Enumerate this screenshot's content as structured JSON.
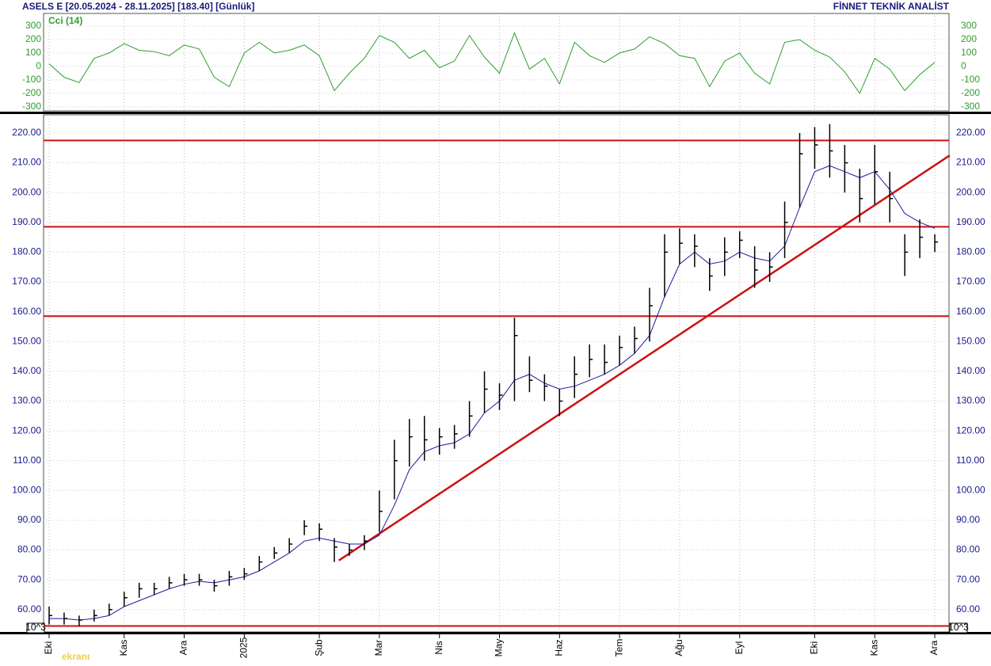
{
  "chart_data": [
    {
      "type": "line",
      "title": "ASELS E  [20.05.2024 - 28.11.2025]  [183.40]  [Günlük]",
      "subtitle": "FİNNET TEKNİK ANALİST",
      "series": [
        {
          "name": "Cci (14)",
          "color": "#2e9e2e",
          "values": [
            20,
            -80,
            -120,
            60,
            100,
            170,
            120,
            110,
            80,
            160,
            130,
            -80,
            -150,
            100,
            180,
            100,
            120,
            160,
            80,
            -180,
            -50,
            60,
            230,
            180,
            60,
            120,
            -10,
            40,
            230,
            70,
            -50,
            250,
            -20,
            60,
            -130,
            180,
            80,
            30,
            100,
            130,
            220,
            170,
            80,
            60,
            -150,
            40,
            100,
            -50,
            -130,
            180,
            200,
            120,
            70,
            -40,
            -200,
            60,
            -20,
            -180,
            -60,
            30
          ]
        }
      ],
      "ylim": [
        -330,
        394
      ],
      "yticks": [
        -300,
        -200,
        -100,
        0,
        100,
        200,
        300
      ]
    },
    {
      "type": "ohlc",
      "categories": [
        "Eki",
        null,
        null,
        null,
        null,
        "Kas",
        null,
        null,
        null,
        "Ara",
        null,
        null,
        null,
        "2025",
        null,
        null,
        null,
        null,
        "Şub",
        null,
        null,
        null,
        "Mar",
        null,
        null,
        null,
        "Nis",
        null,
        null,
        null,
        "May",
        null,
        null,
        null,
        "Haz",
        null,
        null,
        null,
        "Tem",
        null,
        null,
        null,
        "Ağu",
        null,
        null,
        null,
        "Eyl",
        null,
        null,
        null,
        null,
        "Eki",
        null,
        null,
        null,
        "Kas",
        null,
        null,
        null,
        "Ara"
      ],
      "high": [
        61,
        59,
        58,
        60,
        62,
        66,
        69,
        69,
        71,
        72,
        72,
        70,
        73,
        74,
        78,
        81,
        84,
        90,
        89,
        84,
        82,
        85,
        100,
        117,
        124,
        125,
        121,
        122,
        130,
        140,
        136,
        158,
        145,
        139,
        134,
        145,
        149,
        149,
        152,
        155,
        168,
        186,
        188,
        186,
        178,
        185,
        187,
        182,
        180,
        197,
        220,
        222,
        223,
        216,
        208,
        216,
        207,
        186,
        191,
        186
      ],
      "low": [
        55,
        55,
        54.5,
        56,
        58,
        61,
        64,
        65,
        67,
        68,
        68,
        66,
        68,
        70,
        73,
        77,
        79,
        85,
        83,
        76,
        78,
        80,
        86,
        97,
        108,
        110,
        112,
        114,
        118,
        126,
        127,
        130,
        133,
        130,
        125,
        131,
        138,
        139,
        142,
        146,
        150,
        165,
        176,
        175,
        167,
        172,
        178,
        168,
        170,
        178,
        195,
        208,
        205,
        200,
        190,
        196,
        190,
        172,
        178,
        180
      ],
      "close": [
        58,
        57,
        56.5,
        58,
        60,
        64,
        67,
        67,
        69,
        70,
        70,
        68,
        71,
        72,
        76,
        79,
        82,
        88,
        87,
        81,
        80,
        83,
        93,
        110,
        118,
        117,
        118,
        119,
        125,
        134,
        132,
        152,
        137,
        135,
        130,
        139,
        144,
        143,
        148,
        151,
        162,
        180,
        183,
        182,
        172,
        180,
        184,
        174,
        175,
        190,
        213,
        216,
        214,
        210,
        198,
        207,
        198,
        180,
        185,
        183.4
      ],
      "ma": [
        57,
        57,
        56.5,
        57,
        58,
        61,
        63,
        65,
        67,
        68.5,
        69.5,
        69,
        70,
        71,
        73,
        76,
        79,
        83,
        84,
        83,
        82,
        82,
        85,
        95,
        107,
        113,
        115,
        116,
        119,
        126,
        130,
        137,
        139,
        136,
        134,
        135,
        137,
        139,
        142,
        146,
        152,
        165,
        176,
        180,
        176,
        177,
        180,
        178,
        177,
        182,
        195,
        207,
        209,
        207,
        205,
        207,
        201,
        193,
        190,
        188
      ],
      "color": "#000000",
      "ma_color": "#1a1a9c",
      "hlines": [
        217.5,
        188.5,
        158.5,
        54.5
      ],
      "line_color": "#cc1111",
      "trendline": {
        "x": [
          19.3,
          60
        ],
        "y": [
          76.5,
          212.5
        ]
      },
      "ylim": [
        52.5,
        226.1
      ],
      "yticks": [
        {
          "value": 60,
          "label": "60.00"
        },
        {
          "value": 70,
          "label": "70.00"
        },
        {
          "value": 80,
          "label": "80.00"
        },
        {
          "value": 90,
          "label": "90.00"
        },
        {
          "value": 100,
          "label": "100.00"
        },
        {
          "value": 110,
          "label": "110.00"
        },
        {
          "value": 120,
          "label": "120.00"
        },
        {
          "value": 130,
          "label": "130.00"
        },
        {
          "value": 140,
          "label": "140.00"
        },
        {
          "value": 150,
          "label": "150.00"
        },
        {
          "value": 160,
          "label": "160.00"
        },
        {
          "value": 170,
          "label": "170.00"
        },
        {
          "value": 180,
          "label": "180.00"
        },
        {
          "value": 190,
          "label": "190.00"
        },
        {
          "value": 200,
          "label": "200.00"
        },
        {
          "value": 210,
          "label": "210.00"
        },
        {
          "value": 220,
          "label": "220.00"
        }
      ],
      "axis_note": "10^3",
      "watermark": "ekranı",
      "grid": true
    }
  ]
}
